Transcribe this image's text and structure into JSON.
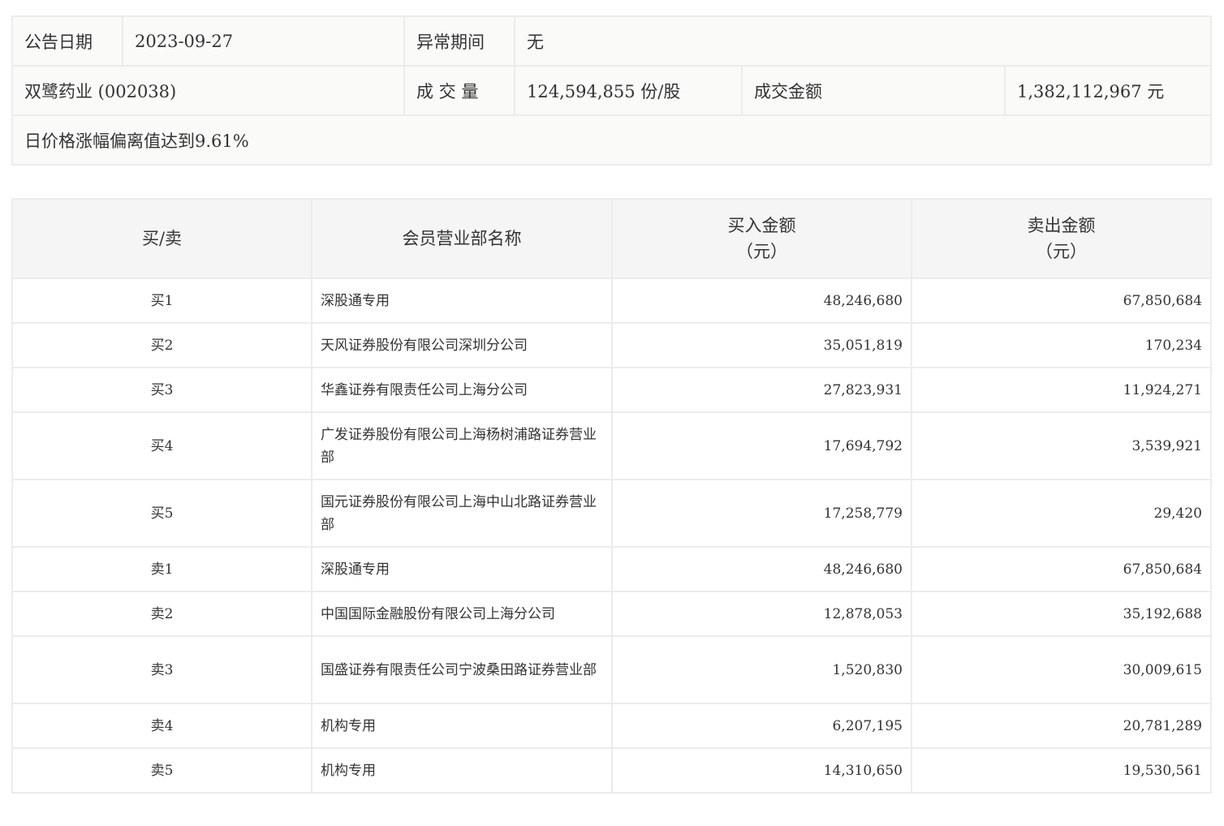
{
  "info": {
    "announce_date_label": "公告日期",
    "announce_date": "2023-09-27",
    "abnormal_period_label": "异常期间",
    "abnormal_period": "无",
    "stock": "双鹭药业 (002038)",
    "volume_label": "成 交 量",
    "volume": "124,594,855 份/股",
    "amount_label": "成交金额",
    "amount": "1,382,112,967 元",
    "reason": "日价格涨幅偏离值达到9.61%"
  },
  "table": {
    "headers": {
      "side": "买/卖",
      "broker": "会员营业部名称",
      "buy": "买入金额",
      "buy_unit": "（元）",
      "sell": "卖出金额",
      "sell_unit": "（元）"
    },
    "rows": [
      {
        "side": "买1",
        "broker": "深股通专用",
        "buy": "48,246,680",
        "sell": "67,850,684"
      },
      {
        "side": "买2",
        "broker": "天风证券股份有限公司深圳分公司",
        "buy": "35,051,819",
        "sell": "170,234"
      },
      {
        "side": "买3",
        "broker": "华鑫证券有限责任公司上海分公司",
        "buy": "27,823,931",
        "sell": "11,924,271"
      },
      {
        "side": "买4",
        "broker": "广发证券股份有限公司上海杨树浦路证券营业部",
        "buy": "17,694,792",
        "sell": "3,539,921"
      },
      {
        "side": "买5",
        "broker": "国元证券股份有限公司上海中山北路证券营业部",
        "buy": "17,258,779",
        "sell": "29,420"
      },
      {
        "side": "卖1",
        "broker": "深股通专用",
        "buy": "48,246,680",
        "sell": "67,850,684"
      },
      {
        "side": "卖2",
        "broker": "中国国际金融股份有限公司上海分公司",
        "buy": "12,878,053",
        "sell": "35,192,688"
      },
      {
        "side": "卖3",
        "broker": "国盛证券有限责任公司宁波桑田路证券营业部",
        "buy": "1,520,830",
        "sell": "30,009,615"
      },
      {
        "side": "卖4",
        "broker": "机构专用",
        "buy": "6,207,195",
        "sell": "20,781,289"
      },
      {
        "side": "卖5",
        "broker": "机构专用",
        "buy": "14,310,650",
        "sell": "19,530,561"
      }
    ]
  }
}
